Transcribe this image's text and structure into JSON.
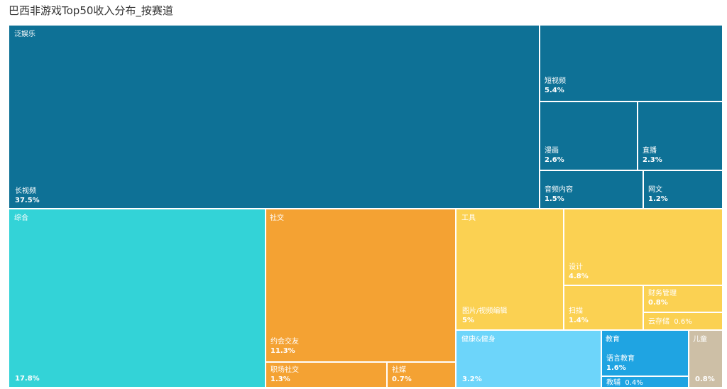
{
  "title": "巴西非游戏Top50收入分布_按赛道",
  "chart_data": {
    "type": "treemap",
    "title": "巴西非游戏Top50收入分布_按赛道",
    "categories": [
      {
        "name": "泛娱乐",
        "color": "#0E7196",
        "children": [
          {
            "name": "长视频",
            "value": 37.5,
            "label": "37.5%"
          },
          {
            "name": "短视频",
            "value": 5.4,
            "label": "5.4%"
          },
          {
            "name": "漫画",
            "value": 2.6,
            "label": "2.6%"
          },
          {
            "name": "直播",
            "value": 2.3,
            "label": "2.3%"
          },
          {
            "name": "音频内容",
            "value": 1.5,
            "label": "1.5%"
          },
          {
            "name": "网文",
            "value": 1.2,
            "label": "1.2%"
          }
        ]
      },
      {
        "name": "综合",
        "color": "#33D3D7",
        "children": [
          {
            "name": "",
            "value": 17.8,
            "label": "17.8%"
          }
        ]
      },
      {
        "name": "社交",
        "color": "#F4A233",
        "children": [
          {
            "name": "约会交友",
            "value": 11.3,
            "label": "11.3%"
          },
          {
            "name": "职场社交",
            "value": 1.3,
            "label": "1.3%"
          },
          {
            "name": "社媒",
            "value": 0.7,
            "label": "0.7%"
          }
        ]
      },
      {
        "name": "工具",
        "color": "#FBD152",
        "children": [
          {
            "name": "图片/视频编辑",
            "value": 5,
            "label": "5%"
          },
          {
            "name": "设计",
            "value": 4.8,
            "label": "4.8%"
          },
          {
            "name": "扫描",
            "value": 1.4,
            "label": "1.4%"
          },
          {
            "name": "财务管理",
            "value": 0.8,
            "label": "0.8%"
          },
          {
            "name": "云存储",
            "value": 0.6,
            "label": "0.6%"
          }
        ]
      },
      {
        "name": "健康&健身",
        "color": "#6DD5FA",
        "children": [
          {
            "name": "",
            "value": 3.2,
            "label": "3.2%"
          }
        ]
      },
      {
        "name": "教育",
        "color": "#1FA4E2",
        "children": [
          {
            "name": "语言教育",
            "value": 1.6,
            "label": "1.6%"
          },
          {
            "name": "教辅",
            "value": 0.4,
            "label": "0.4%"
          }
        ]
      },
      {
        "name": "儿童",
        "color": "#CDBFA6",
        "children": [
          {
            "name": "",
            "value": 0.8,
            "label": "0.8%"
          }
        ]
      }
    ]
  }
}
